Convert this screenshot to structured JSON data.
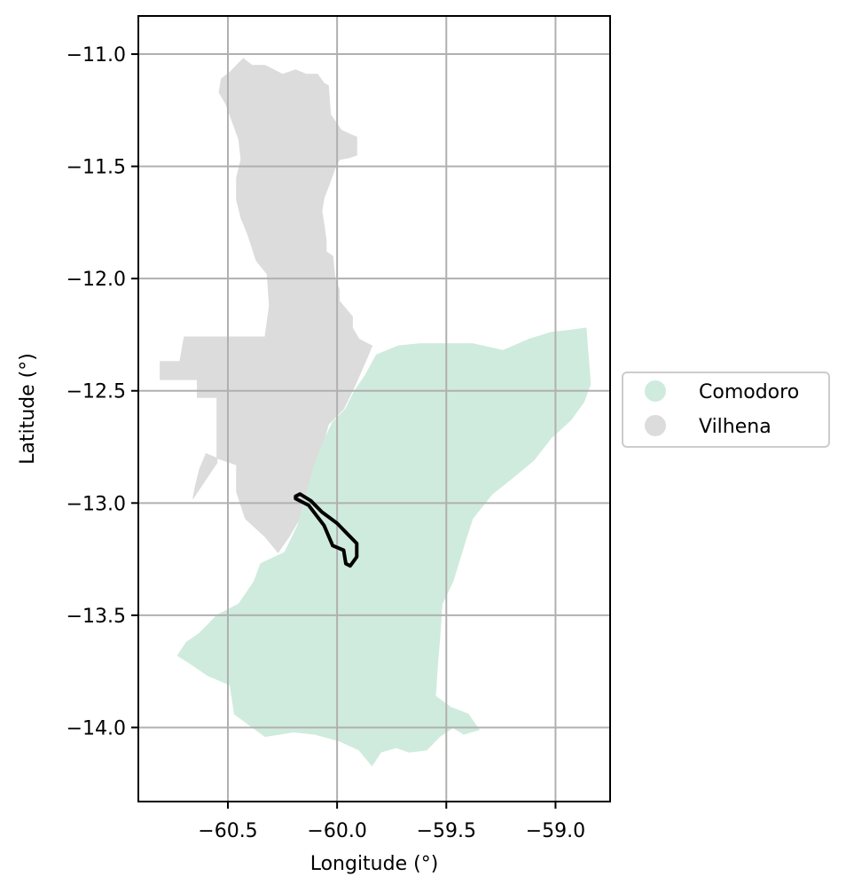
{
  "chart_data": {
    "type": "map",
    "title": "",
    "xlabel": "Longitude (°)",
    "ylabel": "Latitude (°)",
    "xlim": [
      -60.91,
      -58.75
    ],
    "ylim": [
      -14.33,
      -10.83
    ],
    "x_ticks": [
      {
        "value": -60.5,
        "label": "−60.5"
      },
      {
        "value": -60.0,
        "label": "−60.0"
      },
      {
        "value": -59.5,
        "label": "−59.5"
      },
      {
        "value": -59.0,
        "label": "−59.0"
      }
    ],
    "y_ticks": [
      {
        "value": -11.0,
        "label": "−11.0"
      },
      {
        "value": -11.5,
        "label": "−11.5"
      },
      {
        "value": -12.0,
        "label": "−12.0"
      },
      {
        "value": -12.5,
        "label": "−12.5"
      },
      {
        "value": -13.0,
        "label": "−13.0"
      },
      {
        "value": -13.5,
        "label": "−13.5"
      },
      {
        "value": -14.0,
        "label": "−14.0"
      }
    ],
    "grid": true,
    "legend_position": "right-center",
    "legend": [
      {
        "label": "Comodoro",
        "color": "#cfebdd"
      },
      {
        "label": "Vilhena",
        "color": "#dcdcdc"
      }
    ],
    "regions": [
      {
        "legend_label": "Vilhena",
        "color": "#dcdcdc",
        "polygon": [
          [
            -60.49,
            -11.08
          ],
          [
            -60.45,
            -11.04
          ],
          [
            -60.43,
            -11.02
          ],
          [
            -60.39,
            -11.05
          ],
          [
            -60.33,
            -11.05
          ],
          [
            -60.25,
            -11.09
          ],
          [
            -60.19,
            -11.07
          ],
          [
            -60.14,
            -11.09
          ],
          [
            -60.09,
            -11.09
          ],
          [
            -60.06,
            -11.13
          ],
          [
            -60.04,
            -11.14
          ],
          [
            -60.03,
            -11.27
          ],
          [
            -59.98,
            -11.34
          ],
          [
            -59.91,
            -11.37
          ],
          [
            -59.91,
            -11.45
          ],
          [
            -59.94,
            -11.46
          ],
          [
            -59.99,
            -11.47
          ],
          [
            -60.01,
            -11.51
          ],
          [
            -60.04,
            -11.59
          ],
          [
            -60.06,
            -11.64
          ],
          [
            -60.07,
            -11.7
          ],
          [
            -60.06,
            -11.76
          ],
          [
            -60.05,
            -11.83
          ],
          [
            -60.05,
            -11.88
          ],
          [
            -60.02,
            -11.9
          ],
          [
            -60.01,
            -12.0
          ],
          [
            -59.99,
            -12.05
          ],
          [
            -59.99,
            -12.1
          ],
          [
            -59.93,
            -12.17
          ],
          [
            -59.93,
            -12.22
          ],
          [
            -59.9,
            -12.27
          ],
          [
            -59.84,
            -12.3
          ],
          [
            -59.87,
            -12.37
          ],
          [
            -59.92,
            -12.48
          ],
          [
            -59.97,
            -12.58
          ],
          [
            -60.04,
            -12.65
          ],
          [
            -60.07,
            -12.75
          ],
          [
            -60.09,
            -12.8
          ],
          [
            -60.12,
            -12.91
          ],
          [
            -60.16,
            -13.05
          ],
          [
            -60.22,
            -13.15
          ],
          [
            -60.27,
            -13.22
          ],
          [
            -60.33,
            -13.15
          ],
          [
            -60.42,
            -13.07
          ],
          [
            -60.46,
            -12.95
          ],
          [
            -60.46,
            -12.83
          ],
          [
            -60.55,
            -12.8
          ],
          [
            -60.6,
            -12.78
          ],
          [
            -60.63,
            -12.85
          ],
          [
            -60.65,
            -12.93
          ],
          [
            -60.66,
            -12.98
          ],
          [
            -60.55,
            -12.82
          ],
          [
            -60.55,
            -12.53
          ],
          [
            -60.64,
            -12.53
          ],
          [
            -60.64,
            -12.45
          ],
          [
            -60.81,
            -12.45
          ],
          [
            -60.81,
            -12.37
          ],
          [
            -60.72,
            -12.37
          ],
          [
            -60.7,
            -12.26
          ],
          [
            -60.5,
            -12.26
          ],
          [
            -60.33,
            -12.26
          ],
          [
            -60.31,
            -12.12
          ],
          [
            -60.32,
            -11.98
          ],
          [
            -60.37,
            -11.92
          ],
          [
            -60.41,
            -11.8
          ],
          [
            -60.44,
            -11.73
          ],
          [
            -60.46,
            -11.65
          ],
          [
            -60.46,
            -11.55
          ],
          [
            -60.44,
            -11.47
          ],
          [
            -60.45,
            -11.38
          ],
          [
            -60.48,
            -11.3
          ],
          [
            -60.51,
            -11.22
          ],
          [
            -60.54,
            -11.17
          ],
          [
            -60.53,
            -11.11
          ]
        ]
      },
      {
        "legend_label": "Comodoro",
        "color": "#cfebdd",
        "polygon": [
          [
            -59.82,
            -12.34
          ],
          [
            -59.72,
            -12.3
          ],
          [
            -59.62,
            -12.29
          ],
          [
            -59.5,
            -12.29
          ],
          [
            -59.38,
            -12.29
          ],
          [
            -59.24,
            -12.32
          ],
          [
            -59.12,
            -12.27
          ],
          [
            -59.02,
            -12.24
          ],
          [
            -58.93,
            -12.23
          ],
          [
            -58.86,
            -12.22
          ],
          [
            -58.84,
            -12.47
          ],
          [
            -58.87,
            -12.55
          ],
          [
            -58.93,
            -12.63
          ],
          [
            -59.02,
            -12.71
          ],
          [
            -59.1,
            -12.81
          ],
          [
            -59.2,
            -12.89
          ],
          [
            -59.29,
            -12.96
          ],
          [
            -59.38,
            -13.07
          ],
          [
            -59.41,
            -13.16
          ],
          [
            -59.47,
            -13.35
          ],
          [
            -59.52,
            -13.45
          ],
          [
            -59.53,
            -13.6
          ],
          [
            -59.54,
            -13.72
          ],
          [
            -59.55,
            -13.86
          ],
          [
            -59.48,
            -13.91
          ],
          [
            -59.4,
            -13.94
          ],
          [
            -59.35,
            -14.01
          ],
          [
            -59.42,
            -14.03
          ],
          [
            -59.47,
            -14.0
          ],
          [
            -59.53,
            -14.04
          ],
          [
            -59.59,
            -14.1
          ],
          [
            -59.67,
            -14.11
          ],
          [
            -59.73,
            -14.09
          ],
          [
            -59.8,
            -14.11
          ],
          [
            -59.84,
            -14.17
          ],
          [
            -59.9,
            -14.1
          ],
          [
            -59.99,
            -14.06
          ],
          [
            -60.1,
            -14.03
          ],
          [
            -60.2,
            -14.02
          ],
          [
            -60.33,
            -14.04
          ],
          [
            -60.47,
            -13.94
          ],
          [
            -60.49,
            -13.81
          ],
          [
            -60.59,
            -13.77
          ],
          [
            -60.68,
            -13.71
          ],
          [
            -60.73,
            -13.68
          ],
          [
            -60.69,
            -13.62
          ],
          [
            -60.63,
            -13.58
          ],
          [
            -60.55,
            -13.5
          ],
          [
            -60.45,
            -13.45
          ],
          [
            -60.38,
            -13.35
          ],
          [
            -60.35,
            -13.27
          ],
          [
            -60.24,
            -13.22
          ],
          [
            -60.18,
            -13.1
          ],
          [
            -60.14,
            -12.96
          ],
          [
            -60.1,
            -12.82
          ],
          [
            -60.06,
            -12.72
          ],
          [
            -60.02,
            -12.64
          ],
          [
            -59.96,
            -12.58
          ],
          [
            -59.92,
            -12.5
          ],
          [
            -59.87,
            -12.43
          ]
        ]
      }
    ],
    "outlines": [
      {
        "color": "#000000",
        "polygon": [
          [
            -60.19,
            -12.97
          ],
          [
            -60.17,
            -12.96
          ],
          [
            -60.12,
            -12.99
          ],
          [
            -60.07,
            -13.04
          ],
          [
            -60.0,
            -13.09
          ],
          [
            -59.95,
            -13.14
          ],
          [
            -59.91,
            -13.18
          ],
          [
            -59.91,
            -13.24
          ],
          [
            -59.94,
            -13.28
          ],
          [
            -59.96,
            -13.27
          ],
          [
            -59.97,
            -13.21
          ],
          [
            -60.02,
            -13.19
          ],
          [
            -60.06,
            -13.1
          ],
          [
            -60.13,
            -13.01
          ],
          [
            -60.19,
            -12.98
          ]
        ]
      }
    ]
  }
}
